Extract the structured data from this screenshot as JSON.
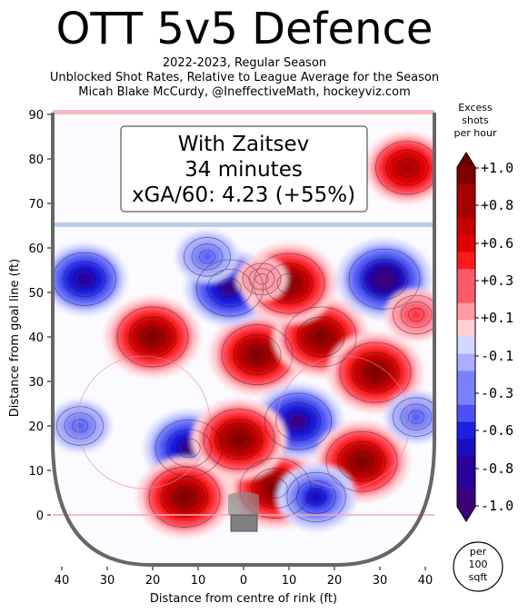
{
  "header": {
    "title": "OTT 5v5 Defence",
    "subtitle_1": "2022-2023, Regular Season",
    "subtitle_2": "Unblocked Shot Rates, Relative to League Average for the Season",
    "subtitle_3": "Micah Blake McCurdy, @IneffectiveMath, hockeyviz.com"
  },
  "chart_data": {
    "type": "heatmap",
    "xlabel": "Distance from centre of rink (ft)",
    "ylabel": "Distance from goal line (ft)",
    "xlim": [
      -42,
      42
    ],
    "ylim": [
      -11,
      90
    ],
    "x_ticks": [
      {
        "value": -40,
        "label": "40"
      },
      {
        "value": -30,
        "label": "30"
      },
      {
        "value": -20,
        "label": "20"
      },
      {
        "value": -10,
        "label": "10"
      },
      {
        "value": 0,
        "label": "0"
      },
      {
        "value": 10,
        "label": "10"
      },
      {
        "value": 20,
        "label": "20"
      },
      {
        "value": 30,
        "label": "30"
      },
      {
        "value": 40,
        "label": "40"
      }
    ],
    "y_ticks": [
      0,
      10,
      20,
      30,
      40,
      50,
      60,
      70,
      80,
      90
    ],
    "annotation": {
      "line1": "With Zaitsev",
      "line2": "34 minutes",
      "line3": "xGA/60: 4.23 (+55%)"
    },
    "colorbar": {
      "title_1": "Excess",
      "title_2": "shots",
      "title_3": "per hour",
      "ticks": [
        "+1.0",
        "+0.8",
        "+0.6",
        "+0.3",
        "+0.1",
        "-0.1",
        "-0.3",
        "-0.6",
        "-0.8",
        "-1.0"
      ],
      "tick_values": [
        1.0,
        0.8,
        0.6,
        0.3,
        0.1,
        -0.1,
        -0.3,
        -0.6,
        -0.8,
        -1.0
      ],
      "range": [
        -1.0,
        1.0
      ],
      "unit_1": "per",
      "unit_2": "100",
      "unit_3": "sqft"
    },
    "blobs": [
      {
        "x": -20,
        "y": 40,
        "value": 1.0
      },
      {
        "x": -12,
        "y": 15,
        "value": -0.9
      },
      {
        "x": -13,
        "y": 4,
        "value": 1.0
      },
      {
        "x": 7,
        "y": 6,
        "value": 1.0
      },
      {
        "x": 3,
        "y": 36,
        "value": 1.0
      },
      {
        "x": 17,
        "y": 40,
        "value": 1.0
      },
      {
        "x": 29,
        "y": 32,
        "value": 1.0
      },
      {
        "x": 31,
        "y": 53,
        "value": -1.0
      },
      {
        "x": -3,
        "y": 51,
        "value": -0.9
      },
      {
        "x": 10,
        "y": 52,
        "value": 1.0
      },
      {
        "x": 12,
        "y": 21,
        "value": -0.9
      },
      {
        "x": 26,
        "y": 12,
        "value": 1.0
      },
      {
        "x": -1,
        "y": 17,
        "value": 1.0
      },
      {
        "x": 16,
        "y": 4,
        "value": -0.7
      },
      {
        "x": 36,
        "y": 78,
        "value": 0.8
      },
      {
        "x": -35,
        "y": 53,
        "value": -0.8
      },
      {
        "x": -36,
        "y": 20,
        "value": -0.4
      },
      {
        "x": 38,
        "y": 22,
        "value": -0.4
      },
      {
        "x": 4,
        "y": 53,
        "value": 0.2
      },
      {
        "x": 38,
        "y": 45,
        "value": 0.4
      },
      {
        "x": -8,
        "y": 58,
        "value": -0.4
      }
    ]
  }
}
